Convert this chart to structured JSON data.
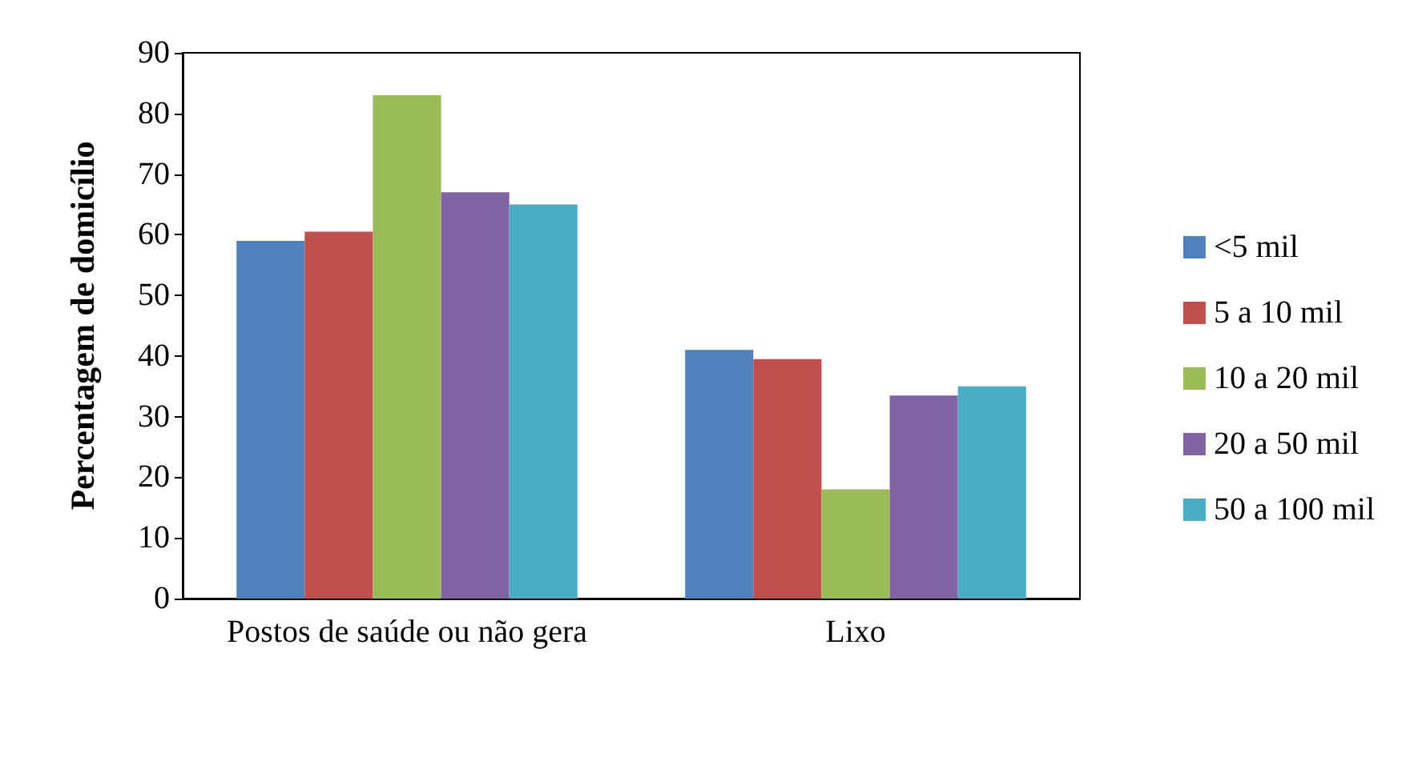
{
  "chart_data": {
    "type": "bar",
    "ylabel": "Percentagem de domicílio",
    "categories": [
      "Postos de saúde ou não gera",
      "Lixo"
    ],
    "series": [
      {
        "name": "<5 mil",
        "color": "#4f81bd",
        "values": [
          59,
          41
        ]
      },
      {
        "name": "5 a 10 mil",
        "color": "#c0504d",
        "values": [
          60.5,
          39.5
        ]
      },
      {
        "name": "10 a 20 mil",
        "color": "#9bbb59",
        "values": [
          83,
          18
        ]
      },
      {
        "name": "20 a 50 mil",
        "color": "#8064a2",
        "values": [
          67,
          33.5
        ]
      },
      {
        "name": "50 a 100 mil",
        "color": "#4bacc6",
        "values": [
          65,
          35
        ]
      }
    ],
    "ylim": [
      0,
      90
    ],
    "yticks": [
      0,
      10,
      20,
      30,
      40,
      50,
      60,
      70,
      80,
      90
    ],
    "grid": false,
    "legend": "right"
  }
}
